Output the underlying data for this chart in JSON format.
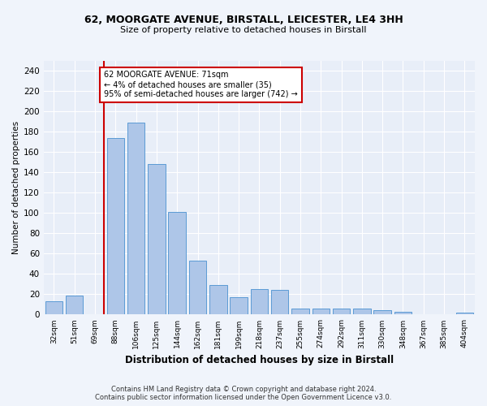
{
  "title1": "62, MOORGATE AVENUE, BIRSTALL, LEICESTER, LE4 3HH",
  "title2": "Size of property relative to detached houses in Birstall",
  "xlabel": "Distribution of detached houses by size in Birstall",
  "ylabel": "Number of detached properties",
  "categories": [
    "32sqm",
    "51sqm",
    "69sqm",
    "88sqm",
    "106sqm",
    "125sqm",
    "144sqm",
    "162sqm",
    "181sqm",
    "199sqm",
    "218sqm",
    "237sqm",
    "255sqm",
    "274sqm",
    "292sqm",
    "311sqm",
    "330sqm",
    "348sqm",
    "367sqm",
    "385sqm",
    "404sqm"
  ],
  "values": [
    13,
    19,
    0,
    174,
    189,
    148,
    101,
    53,
    29,
    17,
    25,
    24,
    6,
    6,
    6,
    6,
    4,
    3,
    0,
    0,
    2
  ],
  "bar_color": "#aec6e8",
  "bar_edge_color": "#5b9bd5",
  "annotation_text": "62 MOORGATE AVENUE: 71sqm\n← 4% of detached houses are smaller (35)\n95% of semi-detached houses are larger (742) →",
  "annotation_box_color": "#ffffff",
  "annotation_box_edge": "#cc0000",
  "red_line_color": "#cc0000",
  "bg_color": "#e8eef8",
  "grid_color": "#ffffff",
  "footer1": "Contains HM Land Registry data © Crown copyright and database right 2024.",
  "footer2": "Contains public sector information licensed under the Open Government Licence v3.0.",
  "ylim": [
    0,
    250
  ],
  "yticks": [
    0,
    20,
    40,
    60,
    80,
    100,
    120,
    140,
    160,
    180,
    200,
    220,
    240
  ],
  "fig_bg_color": "#f0f4fb"
}
